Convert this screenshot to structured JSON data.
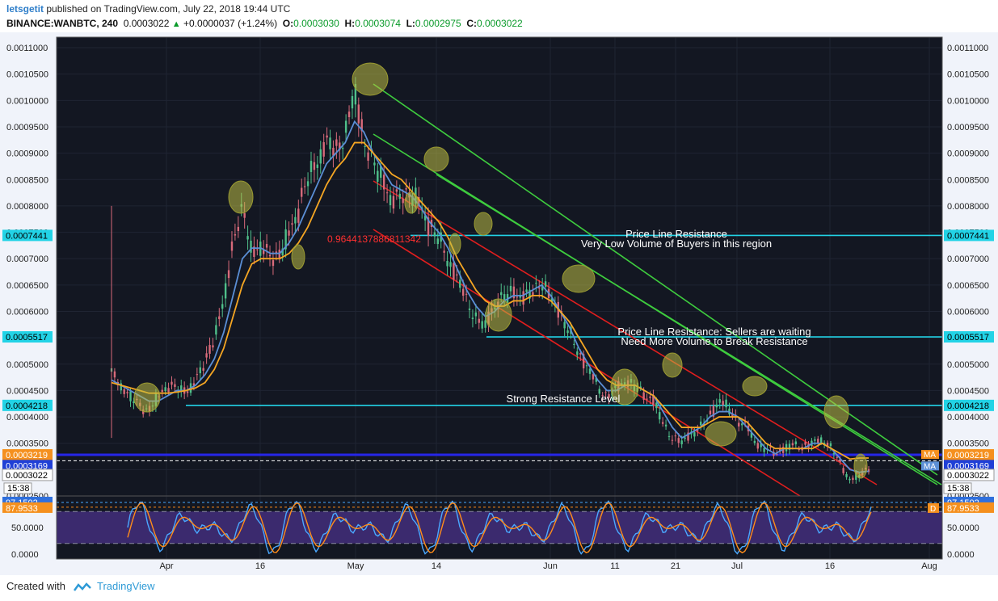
{
  "header": {
    "user": "letsgetit",
    "published": "published on TradingView.com, July 22, 2018 19:44 UTC",
    "symbol": "BINANCE:WANBTC, 240",
    "last": "0.0003022",
    "change": "+0.0000037 (+1.24%)",
    "o_label": "O:",
    "o": "0.0003030",
    "h_label": "H:",
    "h": "0.0003074",
    "l_label": "L:",
    "l": "0.0002975",
    "c_label": "C:",
    "c": "0.0003022"
  },
  "footer": {
    "created_with": "Created with",
    "brand": "TradingView"
  },
  "chart_data": {
    "type": "line",
    "ylim": [
      0.00025,
      0.00112
    ],
    "y_ticks": [
      "0.0011000",
      "0.0010500",
      "0.0010000",
      "0.0009500",
      "0.0009000",
      "0.0008500",
      "0.0008000",
      "0.0007500",
      "0.0007000",
      "0.0006500",
      "0.0006000",
      "0.0005500",
      "0.0005000",
      "0.0004500",
      "0.0004000",
      "0.0003500",
      "0.0003000",
      "0.0002500"
    ],
    "x_ticks": [
      "Apr",
      "16",
      "May",
      "14",
      "Jun",
      "11",
      "21",
      "Jul",
      "16",
      "Aug"
    ],
    "price_labels": {
      "level_1": "0.0007441",
      "level_2": "0.0005517",
      "level_3": "0.0004218",
      "ma_orange": "0.0003219",
      "ma_blue": "0.0003169",
      "last": "0.0003022",
      "countdown": "15:38"
    },
    "ma_tags": [
      "MA",
      "MA"
    ],
    "horizontal_levels": [
      0.0007441,
      0.0005517,
      0.0004218
    ],
    "annotations": {
      "level_1_line1": "Price Line Resistance",
      "level_1_line2": "Very Low Volume of Buyers in this region",
      "level_2_line1": "Price Line Resistance:  Sellers are waiting",
      "level_2_line2": "Need More Volume to Break Resistance",
      "level_3": "Strong Resistance Level",
      "fib_value": "0.9644137886811342"
    },
    "series": [
      {
        "values": [
          0.00048,
          0.00046,
          0.00044,
          0.00042,
          0.00041,
          0.00044,
          0.00046,
          0.00045,
          0.00045,
          0.00047,
          0.0005,
          0.00055,
          0.00062,
          0.00073,
          0.00079,
          0.00072,
          0.00072,
          0.0007,
          0.00071,
          0.00075,
          0.00079,
          0.00085,
          0.00089,
          0.00092,
          0.0009,
          0.00094,
          0.00102,
          0.00092,
          0.00088,
          0.00086,
          0.0008,
          0.00082,
          0.00083,
          0.0008,
          0.00076,
          0.00074,
          0.0007,
          0.00066,
          0.00062,
          0.00059,
          0.00057,
          0.00061,
          0.00063,
          0.00064,
          0.00062,
          0.00064,
          0.00066,
          0.00062,
          0.0006,
          0.00056,
          0.00052,
          0.00049,
          0.00046,
          0.00044,
          0.00045,
          0.00047,
          0.00046,
          0.00044,
          0.00043,
          0.00039,
          0.00036,
          0.00035,
          0.00037,
          0.00038,
          0.0004,
          0.00043,
          0.00042,
          0.00039,
          0.00038,
          0.00035,
          0.00034,
          0.00033,
          0.00034,
          0.00035,
          0.00034,
          0.00035,
          0.00036,
          0.00034,
          0.00031,
          0.00028,
          0.00029,
          0.000302
        ]
      },
      {
        "values": [
          0.00047,
          0.00046,
          0.00045,
          0.00044,
          0.00043,
          0.00043,
          0.00044,
          0.00045,
          0.00045,
          0.00046,
          0.00048,
          0.00051,
          0.00056,
          0.00063,
          0.0007,
          0.00072,
          0.00072,
          0.00071,
          0.00071,
          0.00073,
          0.00076,
          0.0008,
          0.00084,
          0.00088,
          0.0009,
          0.00092,
          0.00096,
          0.00094,
          0.0009,
          0.00087,
          0.00084,
          0.00083,
          0.00082,
          0.0008,
          0.00077,
          0.00075,
          0.00072,
          0.00068,
          0.00064,
          0.00061,
          0.00059,
          0.0006,
          0.00062,
          0.00063,
          0.00063,
          0.00064,
          0.00065,
          0.00063,
          0.0006,
          0.00057,
          0.00053,
          0.0005,
          0.00047,
          0.00045,
          0.00045,
          0.00046,
          0.00046,
          0.00045,
          0.00044,
          0.00041,
          0.00038,
          0.00036,
          0.00037,
          0.00038,
          0.0004,
          0.00041,
          0.00041,
          0.0004,
          0.00038,
          0.00036,
          0.00034,
          0.00033,
          0.00034,
          0.00034,
          0.00034,
          0.00035,
          0.00035,
          0.00034,
          0.00032,
          0.0003,
          0.000295,
          0.000297
        ]
      },
      {
        "values": [
          0.000465,
          0.00046,
          0.000455,
          0.00045,
          0.000445,
          0.000445,
          0.000445,
          0.000447,
          0.00045,
          0.000455,
          0.000465,
          0.00049,
          0.00053,
          0.00059,
          0.00065,
          0.00069,
          0.0007,
          0.0007,
          0.0007,
          0.00071,
          0.00073,
          0.00076,
          0.0008,
          0.00084,
          0.00087,
          0.00089,
          0.00092,
          0.00092,
          0.0009,
          0.00088,
          0.00086,
          0.00085,
          0.00083,
          0.00081,
          0.00079,
          0.00077,
          0.00074,
          0.0007,
          0.00067,
          0.00064,
          0.00062,
          0.00061,
          0.00061,
          0.00062,
          0.00062,
          0.00063,
          0.00063,
          0.00062,
          0.0006,
          0.00058,
          0.00055,
          0.00052,
          0.00049,
          0.00047,
          0.00046,
          0.00046,
          0.00046,
          0.00045,
          0.00044,
          0.00042,
          0.0004,
          0.00038,
          0.00038,
          0.00038,
          0.00039,
          0.0004,
          0.0004,
          0.0004,
          0.00039,
          0.00037,
          0.00035,
          0.00034,
          0.00034,
          0.00034,
          0.00034,
          0.00034,
          0.00035,
          0.00034,
          0.00033,
          0.00032,
          0.000322,
          0.000322
        ]
      }
    ],
    "oscillator": {
      "ylim": [
        0,
        100
      ],
      "y_ticks": [
        "50.0000",
        "0.0000"
      ],
      "value_1": "97.1502",
      "value_2": "87.9533",
      "tag": "D",
      "band": [
        20,
        80
      ]
    }
  }
}
